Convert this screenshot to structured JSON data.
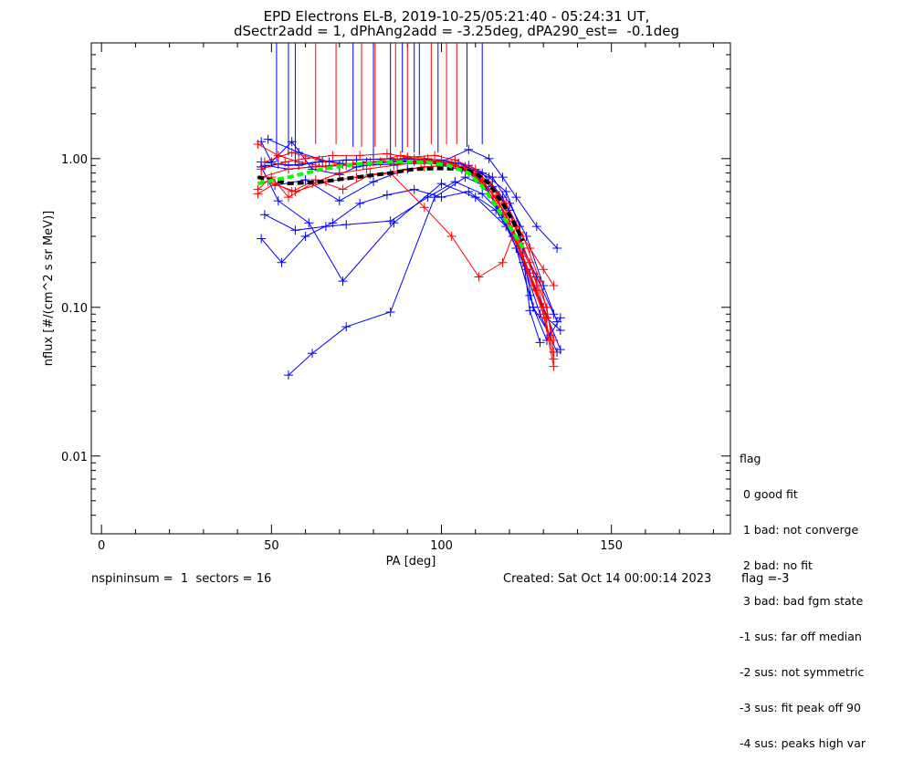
{
  "title_line1": "EPD Electrons EL-B, 2019-10-25/05:21:40 - 05:24:31 UT,",
  "title_line2": "dSectr2add = 1, dPhAng2add = -3.25deg, dPA290_est=  -0.1deg",
  "footer_left": "nspininsum =  1  sectors = 16",
  "footer_center": "Created: Sat Oct 14 00:00:14 2023",
  "footer_right": "flag =-3",
  "legend": {
    "title": "flag",
    "items": [
      " 0 good fit",
      " 1 bad: not converge",
      " 2 bad: no fit",
      " 3 bad: bad fgm state",
      "-1 sus: far off median",
      "-2 sus: not symmetric",
      "-3 sus: fit peak off 90",
      "-4 sus: peaks high var"
    ]
  },
  "colors": {
    "blue": "#0000ff",
    "red": "#ff0000",
    "green": "#00ff00",
    "black": "#000000"
  },
  "chart_data": {
    "type": "line",
    "xlabel": "PA [deg]",
    "ylabel": "nflux [#/(cm^2 s sr MeV)]",
    "xlim": [
      -3,
      185
    ],
    "ylim": [
      0.003,
      6.0
    ],
    "yscale": "log",
    "xticks": [
      0,
      50,
      100,
      150
    ],
    "xtick_labels": [
      "0",
      "50",
      "100",
      "150"
    ],
    "yticks": [
      0.01,
      0.1,
      1.0
    ],
    "ytick_labels": [
      "0.01",
      "0.10",
      "1.00"
    ],
    "vertical_lines": [
      {
        "color": "blue",
        "x": 51.5,
        "ymin": 0.95
      },
      {
        "color": "blue",
        "x": 55,
        "ymin": 1.05
      },
      {
        "color": "blue",
        "x": 57,
        "ymin": 0.9
      },
      {
        "color": "red",
        "x": 63,
        "ymin": 1.25
      },
      {
        "color": "red",
        "x": 69,
        "ymin": 1.25
      },
      {
        "color": "blue",
        "x": 74,
        "ymin": 1.2
      },
      {
        "color": "red",
        "x": 76.5,
        "ymin": 1.2
      },
      {
        "color": "blue",
        "x": 80,
        "ymin": 1.0
      },
      {
        "color": "red",
        "x": 80.5,
        "ymin": 1.2
      },
      {
        "color": "blue",
        "x": 85,
        "ymin": 1.05
      },
      {
        "color": "red",
        "x": 86.5,
        "ymin": 1.2
      },
      {
        "color": "blue",
        "x": 88.5,
        "ymin": 1.1
      },
      {
        "color": "red",
        "x": 90,
        "ymin": 1.2
      },
      {
        "color": "blue",
        "x": 92,
        "ymin": 1.1
      },
      {
        "color": "blue",
        "x": 93.5,
        "ymin": 1.05
      },
      {
        "color": "red",
        "x": 97,
        "ymin": 1.25
      },
      {
        "color": "blue",
        "x": 99,
        "ymin": 1.1
      },
      {
        "color": "red",
        "x": 101.5,
        "ymin": 1.25
      },
      {
        "color": "red",
        "x": 104.5,
        "ymin": 1.25
      },
      {
        "color": "blue",
        "x": 107.5,
        "ymin": 1.2
      },
      {
        "color": "blue",
        "x": 112,
        "ymin": 1.25
      }
    ],
    "series": [
      {
        "color": "blue",
        "x": [
          47,
          50,
          56,
          62,
          70,
          75,
          85,
          100,
          108,
          114,
          118,
          122,
          128,
          134
        ],
        "y": [
          1.3,
          0.95,
          1.3,
          0.85,
          0.78,
          0.88,
          0.95,
          0.95,
          1.15,
          1.0,
          0.75,
          0.55,
          0.35,
          0.25
        ]
      },
      {
        "color": "blue",
        "x": [
          47,
          52,
          58,
          64,
          72,
          80,
          90,
          100,
          108,
          115,
          120,
          125,
          130,
          134
        ],
        "y": [
          0.88,
          0.92,
          0.9,
          0.95,
          0.98,
          0.99,
          1.0,
          0.98,
          0.9,
          0.75,
          0.5,
          0.3,
          0.14,
          0.08
        ]
      },
      {
        "color": "blue",
        "x": [
          48,
          55,
          62,
          70,
          78,
          85,
          92,
          100,
          106,
          112,
          117,
          122,
          127,
          132
        ],
        "y": [
          0.9,
          0.85,
          0.88,
          0.9,
          0.95,
          0.97,
          0.96,
          0.94,
          0.85,
          0.7,
          0.45,
          0.25,
          0.1,
          0.065
        ]
      },
      {
        "color": "blue",
        "x": [
          47,
          53,
          60,
          68,
          76,
          84,
          92,
          100,
          108,
          116,
          121,
          126,
          131,
          135
        ],
        "y": [
          0.29,
          0.2,
          0.3,
          0.37,
          0.5,
          0.57,
          0.62,
          0.55,
          0.6,
          0.45,
          0.3,
          0.17,
          0.085,
          0.07
        ]
      },
      {
        "color": "blue",
        "x": [
          48,
          57,
          66,
          72,
          85,
          96,
          104,
          112,
          118,
          122,
          126
        ],
        "y": [
          0.42,
          0.33,
          0.35,
          0.36,
          0.38,
          0.55,
          0.7,
          0.58,
          0.42,
          0.25,
          0.12
        ]
      },
      {
        "color": "blue",
        "x": [
          47,
          52,
          61,
          71,
          86,
          100,
          110,
          119,
          125,
          130,
          135
        ],
        "y": [
          0.88,
          0.52,
          0.37,
          0.15,
          0.37,
          0.68,
          0.55,
          0.35,
          0.18,
          0.1,
          0.052
        ]
      },
      {
        "color": "blue",
        "x": [
          55,
          62,
          72,
          85,
          98,
          107,
          113,
          118,
          124,
          129,
          134
        ],
        "y": [
          0.035,
          0.049,
          0.074,
          0.093,
          0.55,
          0.75,
          0.65,
          0.4,
          0.2,
          0.09,
          0.05
        ]
      },
      {
        "color": "blue",
        "x": [
          47,
          55,
          65,
          75,
          85,
          95,
          105,
          112,
          118,
          123,
          127,
          131,
          135
        ],
        "y": [
          0.95,
          0.9,
          0.96,
          0.98,
          1.0,
          0.98,
          0.93,
          0.8,
          0.55,
          0.3,
          0.1,
          0.06,
          0.085
        ]
      },
      {
        "color": "blue",
        "x": [
          49,
          58,
          67,
          77,
          87,
          97,
          107,
          114,
          119,
          123,
          126,
          129
        ],
        "y": [
          1.35,
          1.1,
          0.95,
          0.9,
          0.92,
          0.93,
          0.88,
          0.75,
          0.6,
          0.35,
          0.095,
          0.058
        ]
      },
      {
        "color": "blue",
        "x": [
          51,
          60,
          70,
          80,
          90,
          100,
          108,
          115,
          120,
          124,
          128,
          133
        ],
        "y": [
          0.66,
          0.72,
          0.52,
          0.7,
          0.85,
          0.9,
          0.82,
          0.65,
          0.45,
          0.25,
          0.16,
          0.09
        ]
      },
      {
        "color": "red",
        "x": [
          46,
          52,
          58,
          66,
          74,
          82,
          90,
          98,
          104,
          110,
          116,
          121,
          126,
          130,
          133
        ],
        "y": [
          1.25,
          1.05,
          0.95,
          0.88,
          0.92,
          0.95,
          1.02,
          1.05,
          0.98,
          0.85,
          0.6,
          0.38,
          0.2,
          0.1,
          0.045
        ]
      },
      {
        "color": "red",
        "x": [
          46,
          50,
          55,
          62,
          70,
          78,
          86,
          94,
          102,
          108,
          114,
          119,
          124,
          129,
          133
        ],
        "y": [
          0.62,
          0.75,
          0.55,
          0.68,
          0.8,
          0.85,
          0.9,
          0.95,
          0.92,
          0.85,
          0.7,
          0.5,
          0.3,
          0.15,
          0.06
        ]
      },
      {
        "color": "red",
        "x": [
          46,
          51,
          56,
          63,
          71,
          79,
          87,
          95,
          103,
          109,
          115,
          120,
          125,
          130,
          133
        ],
        "y": [
          0.58,
          0.68,
          0.6,
          0.72,
          0.62,
          0.78,
          0.82,
          0.88,
          0.9,
          0.8,
          0.55,
          0.35,
          0.18,
          0.09,
          0.04
        ]
      },
      {
        "color": "red",
        "x": [
          47,
          54,
          60,
          68,
          76,
          84,
          92,
          100,
          106,
          112,
          117,
          122,
          127,
          131
        ],
        "y": [
          0.85,
          0.95,
          1.0,
          1.05,
          1.05,
          1.08,
          1.0,
          0.95,
          0.88,
          0.72,
          0.5,
          0.28,
          0.14,
          0.085
        ]
      },
      {
        "color": "red",
        "x": [
          48,
          56,
          64,
          72,
          80,
          88,
          96,
          104,
          110,
          116,
          120,
          124,
          128,
          132
        ],
        "y": [
          0.95,
          1.1,
          0.98,
          0.9,
          0.95,
          1.05,
          1.0,
          0.92,
          0.78,
          0.55,
          0.38,
          0.22,
          0.13,
          0.06
        ]
      },
      {
        "color": "red",
        "x": [
          49,
          57,
          66,
          75,
          85,
          95,
          103,
          111,
          118,
          122,
          126,
          130,
          133
        ],
        "y": [
          0.7,
          0.6,
          0.7,
          0.75,
          0.8,
          0.47,
          0.3,
          0.16,
          0.2,
          0.35,
          0.25,
          0.18,
          0.14
        ]
      },
      {
        "color": "red",
        "x": [
          47,
          55,
          63,
          71,
          79,
          87,
          95,
          103,
          109,
          114,
          119,
          123,
          127,
          131,
          133
        ],
        "y": [
          0.75,
          0.85,
          0.88,
          0.92,
          0.95,
          0.98,
          0.96,
          0.9,
          0.8,
          0.62,
          0.42,
          0.27,
          0.17,
          0.1,
          0.05
        ]
      }
    ],
    "fit_curves": [
      {
        "color": "black",
        "style": "dashed",
        "x": [
          46,
          55,
          65,
          75,
          85,
          92,
          100,
          106,
          110,
          114,
          118,
          121,
          124
        ],
        "y": [
          0.75,
          0.68,
          0.7,
          0.75,
          0.8,
          0.85,
          0.86,
          0.85,
          0.8,
          0.68,
          0.5,
          0.38,
          0.28
        ]
      },
      {
        "color": "green",
        "style": "dashed",
        "x": [
          46,
          55,
          65,
          75,
          85,
          95,
          102,
          108,
          112,
          116,
          120,
          124
        ],
        "y": [
          0.68,
          0.75,
          0.85,
          0.92,
          0.95,
          0.95,
          0.9,
          0.8,
          0.65,
          0.48,
          0.35,
          0.25
        ]
      }
    ]
  }
}
